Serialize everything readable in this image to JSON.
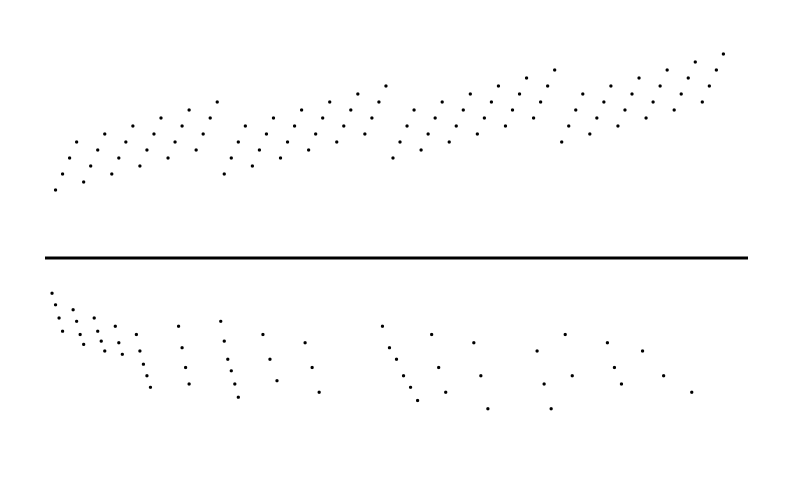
{
  "chart_data": [
    {
      "type": "scatter",
      "color": "#000000",
      "xlim": [
        0,
        100
      ],
      "ylim": [
        0,
        100
      ],
      "x": [
        1.5,
        2.5,
        3.5,
        4.5,
        5.5,
        6.5,
        7.5,
        8.5,
        9.5,
        10.5,
        11.5,
        12.5,
        13.5,
        14.5,
        15.5,
        16.5,
        17.5,
        18.5,
        19.5,
        20.5,
        21.5,
        22.5,
        23.5,
        24.5,
        25.5,
        26.5,
        27.5,
        28.5,
        29.5,
        30.5,
        31.5,
        32.5,
        33.5,
        34.5,
        35.5,
        36.5,
        37.5,
        38.5,
        39.5,
        40.5,
        41.5,
        42.5,
        43.5,
        44.5,
        45.5,
        46.5,
        47.5,
        48.5,
        49.5,
        50.5,
        51.5,
        52.5,
        53.5,
        54.5,
        55.5,
        56.5,
        57.5,
        58.5,
        59.5,
        60.5,
        61.5,
        62.5,
        63.5,
        64.5,
        65.5,
        66.5,
        67.5,
        68.5,
        69.5,
        70.5,
        71.5,
        72.5,
        73.5,
        74.5,
        75.5,
        76.5,
        77.5,
        78.5,
        79.5,
        80.5,
        81.5,
        82.5,
        83.5,
        84.5,
        85.5,
        86.5,
        87.5,
        88.5,
        89.5,
        90.5,
        91.5,
        92.5,
        93.5,
        94.5,
        95.5,
        96.5
      ],
      "values": [
        20,
        28,
        36,
        44,
        24,
        32,
        40,
        48,
        28,
        36,
        44,
        52,
        32,
        40,
        48,
        56,
        36,
        44,
        52,
        60,
        40,
        48,
        56,
        64,
        28,
        36,
        44,
        52,
        32,
        40,
        48,
        56,
        36,
        44,
        52,
        60,
        40,
        48,
        56,
        64,
        44,
        52,
        60,
        68,
        48,
        56,
        64,
        72,
        36,
        44,
        52,
        60,
        40,
        48,
        56,
        64,
        44,
        52,
        60,
        68,
        48,
        56,
        64,
        72,
        52,
        60,
        68,
        76,
        56,
        64,
        72,
        80,
        44,
        52,
        60,
        68,
        48,
        56,
        64,
        72,
        52,
        60,
        68,
        76,
        56,
        64,
        72,
        80,
        60,
        68,
        76,
        84,
        64,
        72,
        80,
        88
      ]
    },
    {
      "type": "scatter",
      "color": "#000000",
      "xlim": [
        0,
        100
      ],
      "ylim": [
        0,
        100
      ],
      "x": [
        1,
        1.5,
        2,
        2.5,
        4,
        4.5,
        5,
        5.5,
        7,
        7.5,
        8,
        8.5,
        10,
        10.5,
        11,
        13,
        13.5,
        14,
        14.5,
        15,
        19,
        19.5,
        20,
        20.5,
        25,
        25.5,
        26,
        26.5,
        27,
        27.5,
        31,
        32,
        33,
        37,
        38,
        39,
        48,
        49,
        50,
        51,
        52,
        53,
        55,
        56,
        57,
        61,
        62,
        63,
        70,
        71,
        72,
        74,
        75,
        80,
        81,
        82,
        85,
        88,
        92
      ],
      "values": [
        95,
        88,
        80,
        72,
        85,
        78,
        70,
        64,
        80,
        72,
        66,
        60,
        75,
        65,
        58,
        70,
        60,
        52,
        45,
        38,
        75,
        62,
        50,
        40,
        78,
        66,
        55,
        48,
        40,
        32,
        70,
        55,
        42,
        65,
        50,
        35,
        75,
        62,
        55,
        45,
        38,
        30,
        70,
        50,
        35,
        65,
        45,
        25,
        60,
        40,
        25,
        70,
        45,
        65,
        50,
        40,
        60,
        45,
        35
      ]
    }
  ]
}
